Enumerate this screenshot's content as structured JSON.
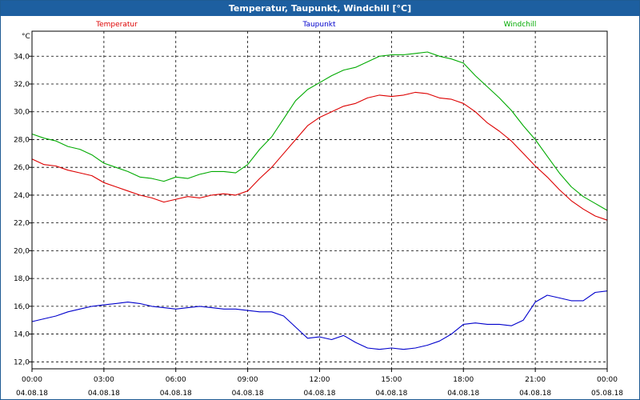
{
  "window": {
    "title": "Temperatur, Taupunkt, Windchill [°C]"
  },
  "chart_data": {
    "type": "line",
    "title": "Temperatur, Taupunkt, Windchill [°C]",
    "ylabel": "°C",
    "xlabel": "",
    "ylim": [
      11.5,
      35.8
    ],
    "grid": true,
    "legend_placement": "top",
    "y_ticks": [
      12.0,
      14.0,
      16.0,
      18.0,
      20.0,
      22.0,
      24.0,
      26.0,
      28.0,
      30.0,
      32.0,
      34.0
    ],
    "y_tick_labels": [
      "12,0",
      "14,0",
      "16,0",
      "18,0",
      "20,0",
      "22,0",
      "24,0",
      "26,0",
      "28,0",
      "30,0",
      "32,0",
      "34,0"
    ],
    "x_ticks": [
      {
        "time": "00:00",
        "date": "04.08.18"
      },
      {
        "time": "03:00",
        "date": "04.08.18"
      },
      {
        "time": "06:00",
        "date": "04.08.18"
      },
      {
        "time": "09:00",
        "date": "04.08.18"
      },
      {
        "time": "12:00",
        "date": "04.08.18"
      },
      {
        "time": "15:00",
        "date": "04.08.18"
      },
      {
        "time": "18:00",
        "date": "04.08.18"
      },
      {
        "time": "21:00",
        "date": "04.08.18"
      },
      {
        "time": "00:00",
        "date": "05.08.18"
      }
    ],
    "x_hours": [
      0,
      0.5,
      1,
      1.5,
      2,
      2.5,
      3,
      3.5,
      4,
      4.5,
      5,
      5.5,
      6,
      6.5,
      7,
      7.5,
      8,
      8.5,
      9,
      9.5,
      10,
      10.5,
      11,
      11.5,
      12,
      12.5,
      13,
      13.5,
      14,
      14.5,
      15,
      15.5,
      16,
      16.5,
      17,
      17.5,
      18,
      18.5,
      19,
      19.5,
      20,
      20.5,
      21,
      21.5,
      22,
      22.5,
      23,
      23.5,
      24
    ],
    "series": [
      {
        "name": "Temperatur",
        "color": "#dd0000",
        "values": [
          26.6,
          26.2,
          26.1,
          25.8,
          25.6,
          25.4,
          24.9,
          24.6,
          24.3,
          24.0,
          23.8,
          23.5,
          23.7,
          23.9,
          23.8,
          24.0,
          24.1,
          24.0,
          24.3,
          25.2,
          26.0,
          27.0,
          28.0,
          29.0,
          29.6,
          30.0,
          30.4,
          30.6,
          31.0,
          31.2,
          31.1,
          31.2,
          31.4,
          31.3,
          31.0,
          30.9,
          30.6,
          30.0,
          29.2,
          28.6,
          27.9,
          27.0,
          26.1,
          25.3,
          24.4,
          23.6,
          23.0,
          22.5,
          22.2
        ]
      },
      {
        "name": "Taupunkt",
        "color": "#0000cc",
        "values": [
          14.9,
          15.1,
          15.3,
          15.6,
          15.8,
          16.0,
          16.1,
          16.2,
          16.3,
          16.2,
          16.0,
          15.9,
          15.8,
          15.9,
          16.0,
          15.9,
          15.8,
          15.8,
          15.7,
          15.6,
          15.6,
          15.3,
          14.5,
          13.7,
          13.8,
          13.6,
          13.9,
          13.4,
          13.0,
          12.9,
          13.0,
          12.9,
          13.0,
          13.2,
          13.5,
          14.0,
          14.7,
          14.8,
          14.7,
          14.7,
          14.6,
          15.0,
          16.3,
          16.8,
          16.6,
          16.4,
          16.4,
          17.0,
          17.1
        ]
      },
      {
        "name": "Windchill",
        "color": "#00aa00",
        "values": [
          28.4,
          28.1,
          27.9,
          27.5,
          27.3,
          26.9,
          26.3,
          26.0,
          25.7,
          25.3,
          25.2,
          25.0,
          25.3,
          25.2,
          25.5,
          25.7,
          25.7,
          25.6,
          26.2,
          27.3,
          28.2,
          29.5,
          30.8,
          31.6,
          32.1,
          32.6,
          33.0,
          33.2,
          33.6,
          34.0,
          34.1,
          34.1,
          34.2,
          34.3,
          34.0,
          33.8,
          33.5,
          32.6,
          31.8,
          31.0,
          30.1,
          29.0,
          28.0,
          26.8,
          25.6,
          24.6,
          23.9,
          23.4,
          22.9
        ]
      }
    ]
  }
}
